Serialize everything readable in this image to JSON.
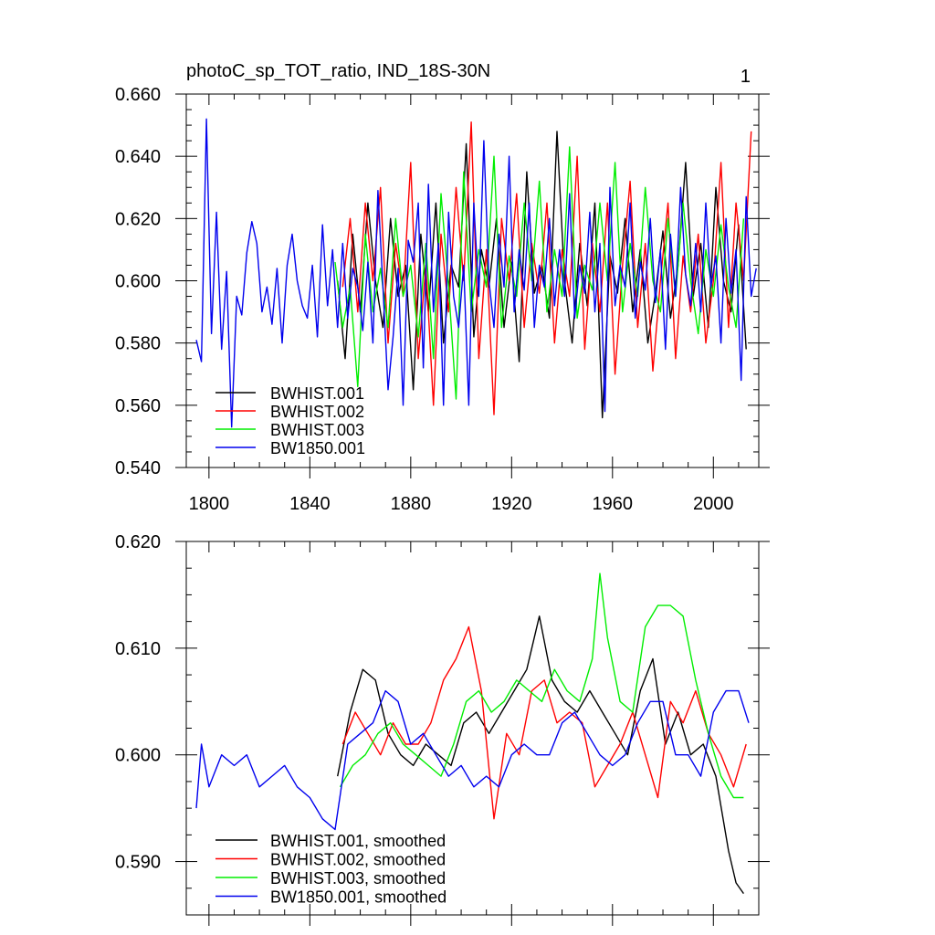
{
  "chart_data": [
    {
      "type": "line",
      "title": "photoC_sp_TOT_ratio, IND_18S-30N",
      "corner_label": "1",
      "xlabel": "",
      "ylabel": "",
      "xlim": [
        1791,
        2018
      ],
      "ylim": [
        0.54,
        0.66
      ],
      "xticks": [
        "1800",
        "1840",
        "1880",
        "1920",
        "1960",
        "2000"
      ],
      "yticks": [
        "0.540",
        "0.560",
        "0.580",
        "0.600",
        "0.620",
        "0.640",
        "0.660"
      ],
      "grid": false,
      "legend_position": "bottom-left",
      "series": [
        {
          "name": "BWHIST.001",
          "color": "#000000",
          "x": [
            1851,
            1854,
            1857,
            1860,
            1863,
            1866,
            1869,
            1872,
            1875,
            1878,
            1881,
            1884,
            1887,
            1890,
            1893,
            1896,
            1899,
            1902,
            1905,
            1908,
            1911,
            1914,
            1917,
            1920,
            1923,
            1926,
            1929,
            1932,
            1935,
            1938,
            1941,
            1944,
            1947,
            1950,
            1953,
            1956,
            1959,
            1962,
            1965,
            1968,
            1971,
            1974,
            1977,
            1980,
            1983,
            1986,
            1989,
            1992,
            1995,
            1998,
            2001,
            2004,
            2007,
            2010,
            2013
          ],
          "values": [
            0.6,
            0.575,
            0.615,
            0.59,
            0.625,
            0.6,
            0.585,
            0.62,
            0.595,
            0.605,
            0.565,
            0.615,
            0.59,
            0.625,
            0.58,
            0.605,
            0.598,
            0.644,
            0.582,
            0.61,
            0.598,
            0.62,
            0.585,
            0.606,
            0.574,
            0.635,
            0.596,
            0.605,
            0.588,
            0.648,
            0.6,
            0.58,
            0.612,
            0.592,
            0.625,
            0.556,
            0.608,
            0.596,
            0.62,
            0.59,
            0.61,
            0.58,
            0.596,
            0.616,
            0.588,
            0.605,
            0.638,
            0.595,
            0.612,
            0.585,
            0.63,
            0.6,
            0.59,
            0.618,
            0.578
          ]
        },
        {
          "name": "BWHIST.002",
          "color": "#ff0000",
          "x": [
            1853,
            1856,
            1859,
            1862,
            1865,
            1868,
            1871,
            1874,
            1877,
            1880,
            1883,
            1886,
            1889,
            1892,
            1895,
            1898,
            1901,
            1904,
            1907,
            1910,
            1913,
            1916,
            1919,
            1922,
            1925,
            1928,
            1931,
            1934,
            1937,
            1940,
            1943,
            1946,
            1949,
            1952,
            1955,
            1958,
            1961,
            1964,
            1967,
            1970,
            1973,
            1976,
            1979,
            1982,
            1985,
            1988,
            1991,
            1994,
            1997,
            2000,
            2003,
            2006,
            2009,
            2012,
            2015
          ],
          "values": [
            0.598,
            0.62,
            0.59,
            0.625,
            0.6,
            0.63,
            0.58,
            0.612,
            0.595,
            0.638,
            0.575,
            0.605,
            0.56,
            0.615,
            0.59,
            0.63,
            0.6,
            0.651,
            0.575,
            0.61,
            0.557,
            0.62,
            0.6,
            0.628,
            0.585,
            0.612,
            0.596,
            0.625,
            0.58,
            0.61,
            0.595,
            0.64,
            0.578,
            0.612,
            0.59,
            0.625,
            0.57,
            0.605,
            0.632,
            0.585,
            0.612,
            0.571,
            0.6,
            0.625,
            0.575,
            0.608,
            0.59,
            0.615,
            0.58,
            0.6,
            0.638,
            0.585,
            0.625,
            0.6,
            0.648
          ]
        },
        {
          "name": "BWHIST.003",
          "color": "#00ee00",
          "x": [
            1850,
            1853,
            1856,
            1859,
            1862,
            1865,
            1868,
            1871,
            1874,
            1877,
            1880,
            1883,
            1886,
            1889,
            1892,
            1895,
            1898,
            1901,
            1904,
            1907,
            1910,
            1913,
            1916,
            1919,
            1922,
            1925,
            1928,
            1931,
            1934,
            1937,
            1940,
            1943,
            1946,
            1949,
            1952,
            1955,
            1958,
            1961,
            1964,
            1967,
            1970,
            1973,
            1976,
            1979,
            1982,
            1985,
            1988,
            1991,
            1994,
            1997,
            2000,
            2003,
            2006,
            2009,
            2012
          ],
          "values": [
            0.606,
            0.585,
            0.598,
            0.566,
            0.615,
            0.59,
            0.604,
            0.585,
            0.62,
            0.595,
            0.605,
            0.582,
            0.612,
            0.575,
            0.628,
            0.598,
            0.562,
            0.635,
            0.59,
            0.61,
            0.598,
            0.64,
            0.585,
            0.608,
            0.595,
            0.625,
            0.6,
            0.632,
            0.59,
            0.61,
            0.595,
            0.643,
            0.588,
            0.605,
            0.597,
            0.625,
            0.6,
            0.638,
            0.59,
            0.612,
            0.595,
            0.63,
            0.6,
            0.59,
            0.62,
            0.595,
            0.625,
            0.6,
            0.583,
            0.61,
            0.595,
            0.618,
            0.598,
            0.585,
            0.62
          ]
        },
        {
          "name": "BW1850.001",
          "color": "#0000ee",
          "x": [
            1795,
            1797,
            1799,
            1801,
            1803,
            1805,
            1807,
            1809,
            1811,
            1813,
            1815,
            1817,
            1819,
            1821,
            1823,
            1825,
            1827,
            1829,
            1831,
            1833,
            1835,
            1837,
            1839,
            1841,
            1843,
            1845,
            1847,
            1849,
            1851,
            1853,
            1855,
            1857,
            1859,
            1861,
            1863,
            1865,
            1867,
            1869,
            1871,
            1873,
            1875,
            1877,
            1879,
            1881,
            1883,
            1885,
            1887,
            1889,
            1891,
            1893,
            1895,
            1897,
            1899,
            1901,
            1903,
            1905,
            1907,
            1909,
            1911,
            1913,
            1915,
            1917,
            1919,
            1921,
            1923,
            1925,
            1927,
            1929,
            1931,
            1933,
            1935,
            1937,
            1939,
            1941,
            1943,
            1945,
            1947,
            1949,
            1951,
            1953,
            1955,
            1957,
            1959,
            1961,
            1963,
            1965,
            1967,
            1969,
            1971,
            1973,
            1975,
            1977,
            1979,
            1981,
            1983,
            1985,
            1987,
            1989,
            1991,
            1993,
            1995,
            1997,
            1999,
            2001,
            2003,
            2005,
            2007,
            2009,
            2011,
            2013,
            2015,
            2017
          ],
          "values": [
            0.581,
            0.574,
            0.652,
            0.583,
            0.622,
            0.578,
            0.603,
            0.553,
            0.595,
            0.589,
            0.609,
            0.619,
            0.612,
            0.59,
            0.598,
            0.586,
            0.604,
            0.58,
            0.605,
            0.615,
            0.6,
            0.592,
            0.588,
            0.605,
            0.582,
            0.618,
            0.592,
            0.61,
            0.585,
            0.612,
            0.588,
            0.604,
            0.598,
            0.584,
            0.606,
            0.58,
            0.629,
            0.598,
            0.565,
            0.582,
            0.604,
            0.56,
            0.613,
            0.606,
            0.625,
            0.572,
            0.631,
            0.59,
            0.612,
            0.56,
            0.622,
            0.595,
            0.585,
            0.605,
            0.56,
            0.625,
            0.595,
            0.645,
            0.6,
            0.585,
            0.615,
            0.598,
            0.64,
            0.59,
            0.61,
            0.597,
            0.625,
            0.585,
            0.605,
            0.598,
            0.62,
            0.592,
            0.61,
            0.595,
            0.628,
            0.588,
            0.605,
            0.596,
            0.622,
            0.59,
            0.612,
            0.558,
            0.63,
            0.592,
            0.605,
            0.598,
            0.625,
            0.588,
            0.606,
            0.597,
            0.62,
            0.593,
            0.61,
            0.578,
            0.615,
            0.595,
            0.63,
            0.602,
            0.592,
            0.612,
            0.59,
            0.625,
            0.598,
            0.608,
            0.58,
            0.62,
            0.596,
            0.61,
            0.568,
            0.627,
            0.595,
            0.604
          ]
        }
      ]
    },
    {
      "type": "line",
      "title": "",
      "xlabel": "",
      "ylabel": "",
      "xlim": [
        1791,
        2018
      ],
      "ylim": [
        0.585,
        0.62
      ],
      "xticks": [],
      "yticks": [
        "0.590",
        "0.600",
        "0.610",
        "0.620"
      ],
      "grid": false,
      "legend_position": "bottom-left",
      "series": [
        {
          "name": "BWHIST.001, smoothed",
          "color": "#000000",
          "x": [
            1851,
            1856,
            1861,
            1866,
            1871,
            1876,
            1881,
            1886,
            1891,
            1896,
            1901,
            1906,
            1911,
            1916,
            1921,
            1926,
            1931,
            1936,
            1941,
            1946,
            1951,
            1956,
            1961,
            1966,
            1971,
            1976,
            1981,
            1986,
            1991,
            1996,
            2001,
            2006,
            2009,
            2012
          ],
          "values": [
            0.598,
            0.604,
            0.608,
            0.607,
            0.602,
            0.6,
            0.599,
            0.601,
            0.6,
            0.599,
            0.603,
            0.604,
            0.602,
            0.604,
            0.606,
            0.608,
            0.613,
            0.607,
            0.605,
            0.604,
            0.606,
            0.604,
            0.602,
            0.6,
            0.606,
            0.609,
            0.601,
            0.604,
            0.6,
            0.601,
            0.598,
            0.591,
            0.588,
            0.587
          ]
        },
        {
          "name": "BWHIST.002, smoothed",
          "color": "#ff0000",
          "x": [
            1853,
            1858,
            1863,
            1868,
            1873,
            1878,
            1883,
            1888,
            1893,
            1898,
            1903,
            1908,
            1913,
            1918,
            1923,
            1928,
            1933,
            1938,
            1943,
            1948,
            1953,
            1958,
            1963,
            1968,
            1973,
            1978,
            1983,
            1988,
            1993,
            1998,
            2003,
            2008,
            2013
          ],
          "values": [
            0.601,
            0.604,
            0.602,
            0.6,
            0.603,
            0.601,
            0.601,
            0.603,
            0.607,
            0.609,
            0.612,
            0.606,
            0.594,
            0.602,
            0.6,
            0.606,
            0.607,
            0.603,
            0.604,
            0.603,
            0.597,
            0.599,
            0.601,
            0.604,
            0.6,
            0.596,
            0.605,
            0.603,
            0.606,
            0.602,
            0.6,
            0.597,
            0.601
          ]
        },
        {
          "name": "BWHIST.003, smoothed",
          "color": "#00ee00",
          "x": [
            1852,
            1857,
            1862,
            1867,
            1872,
            1877,
            1882,
            1887,
            1892,
            1897,
            1902,
            1907,
            1912,
            1917,
            1922,
            1927,
            1932,
            1937,
            1942,
            1947,
            1952,
            1955,
            1958,
            1963,
            1968,
            1973,
            1978,
            1983,
            1988,
            1993,
            1998,
            2003,
            2008,
            2012
          ],
          "values": [
            0.597,
            0.599,
            0.6,
            0.602,
            0.603,
            0.601,
            0.6,
            0.599,
            0.598,
            0.601,
            0.605,
            0.606,
            0.604,
            0.605,
            0.607,
            0.606,
            0.605,
            0.608,
            0.606,
            0.605,
            0.609,
            0.617,
            0.611,
            0.605,
            0.604,
            0.612,
            0.614,
            0.614,
            0.613,
            0.607,
            0.602,
            0.598,
            0.596,
            0.596
          ]
        },
        {
          "name": "BW1850.001, smoothed",
          "color": "#0000ee",
          "x": [
            1795,
            1797,
            1800,
            1805,
            1810,
            1815,
            1820,
            1825,
            1830,
            1835,
            1840,
            1845,
            1850,
            1855,
            1860,
            1865,
            1870,
            1875,
            1880,
            1885,
            1890,
            1895,
            1900,
            1905,
            1910,
            1915,
            1920,
            1925,
            1930,
            1935,
            1940,
            1945,
            1950,
            1955,
            1960,
            1965,
            1970,
            1975,
            1980,
            1985,
            1990,
            1995,
            2000,
            2005,
            2010,
            2014
          ],
          "values": [
            0.595,
            0.601,
            0.597,
            0.6,
            0.599,
            0.6,
            0.597,
            0.598,
            0.599,
            0.597,
            0.596,
            0.594,
            0.593,
            0.601,
            0.602,
            0.603,
            0.606,
            0.605,
            0.601,
            0.602,
            0.6,
            0.598,
            0.599,
            0.597,
            0.598,
            0.597,
            0.6,
            0.601,
            0.6,
            0.6,
            0.603,
            0.604,
            0.602,
            0.6,
            0.599,
            0.6,
            0.603,
            0.605,
            0.605,
            0.6,
            0.6,
            0.598,
            0.604,
            0.606,
            0.606,
            0.603
          ]
        }
      ]
    }
  ]
}
